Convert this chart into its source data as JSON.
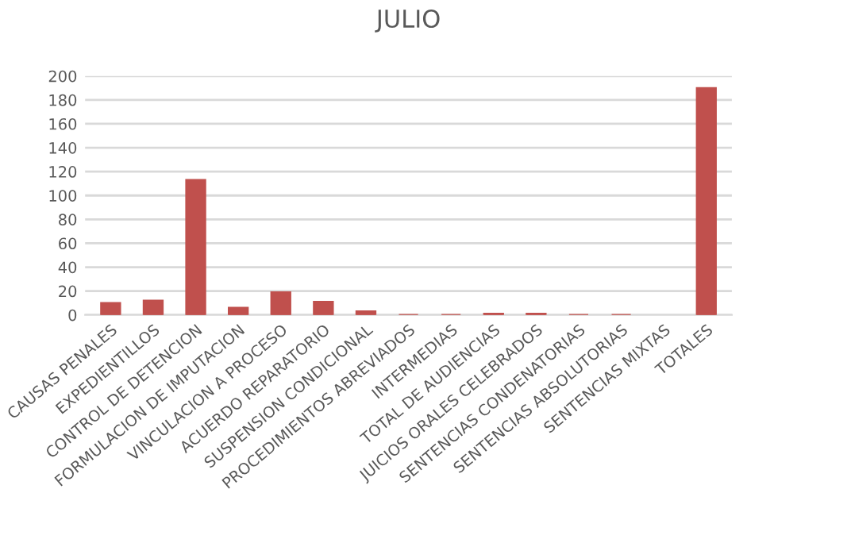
{
  "chart_data": {
    "type": "bar",
    "title": "JULIO",
    "categories": [
      "CAUSAS PENALES",
      "EXPEDIENTILLOS",
      "CONTROL DE DETENCION",
      "FORMULACION DE IMPUTACION",
      "VINCULACION A PROCESO",
      "ACUERDO REPARATORIO",
      "SUSPENSION CONDICIONAL",
      "PROCEDIMIENTOS ABREVIADOS",
      "INTERMEDIAS",
      "TOTAL DE AUDIENCIAS",
      "JUICIOS ORALES CELEBRADOS",
      "SENTENCIAS CONDENATORIAS",
      "SENTENCIAS ABSOLUTORIAS",
      "SENTENCIAS MIXTAS",
      "TOTALES"
    ],
    "values": [
      10,
      12,
      113,
      6,
      19,
      11,
      3,
      0,
      0,
      1,
      1,
      0,
      0,
      null,
      190
    ],
    "color": "#c0504d",
    "ylim": [
      0,
      200
    ],
    "yticks": [
      0,
      20,
      40,
      60,
      80,
      100,
      120,
      140,
      160,
      180,
      200
    ],
    "grid": "y",
    "legend": false
  }
}
